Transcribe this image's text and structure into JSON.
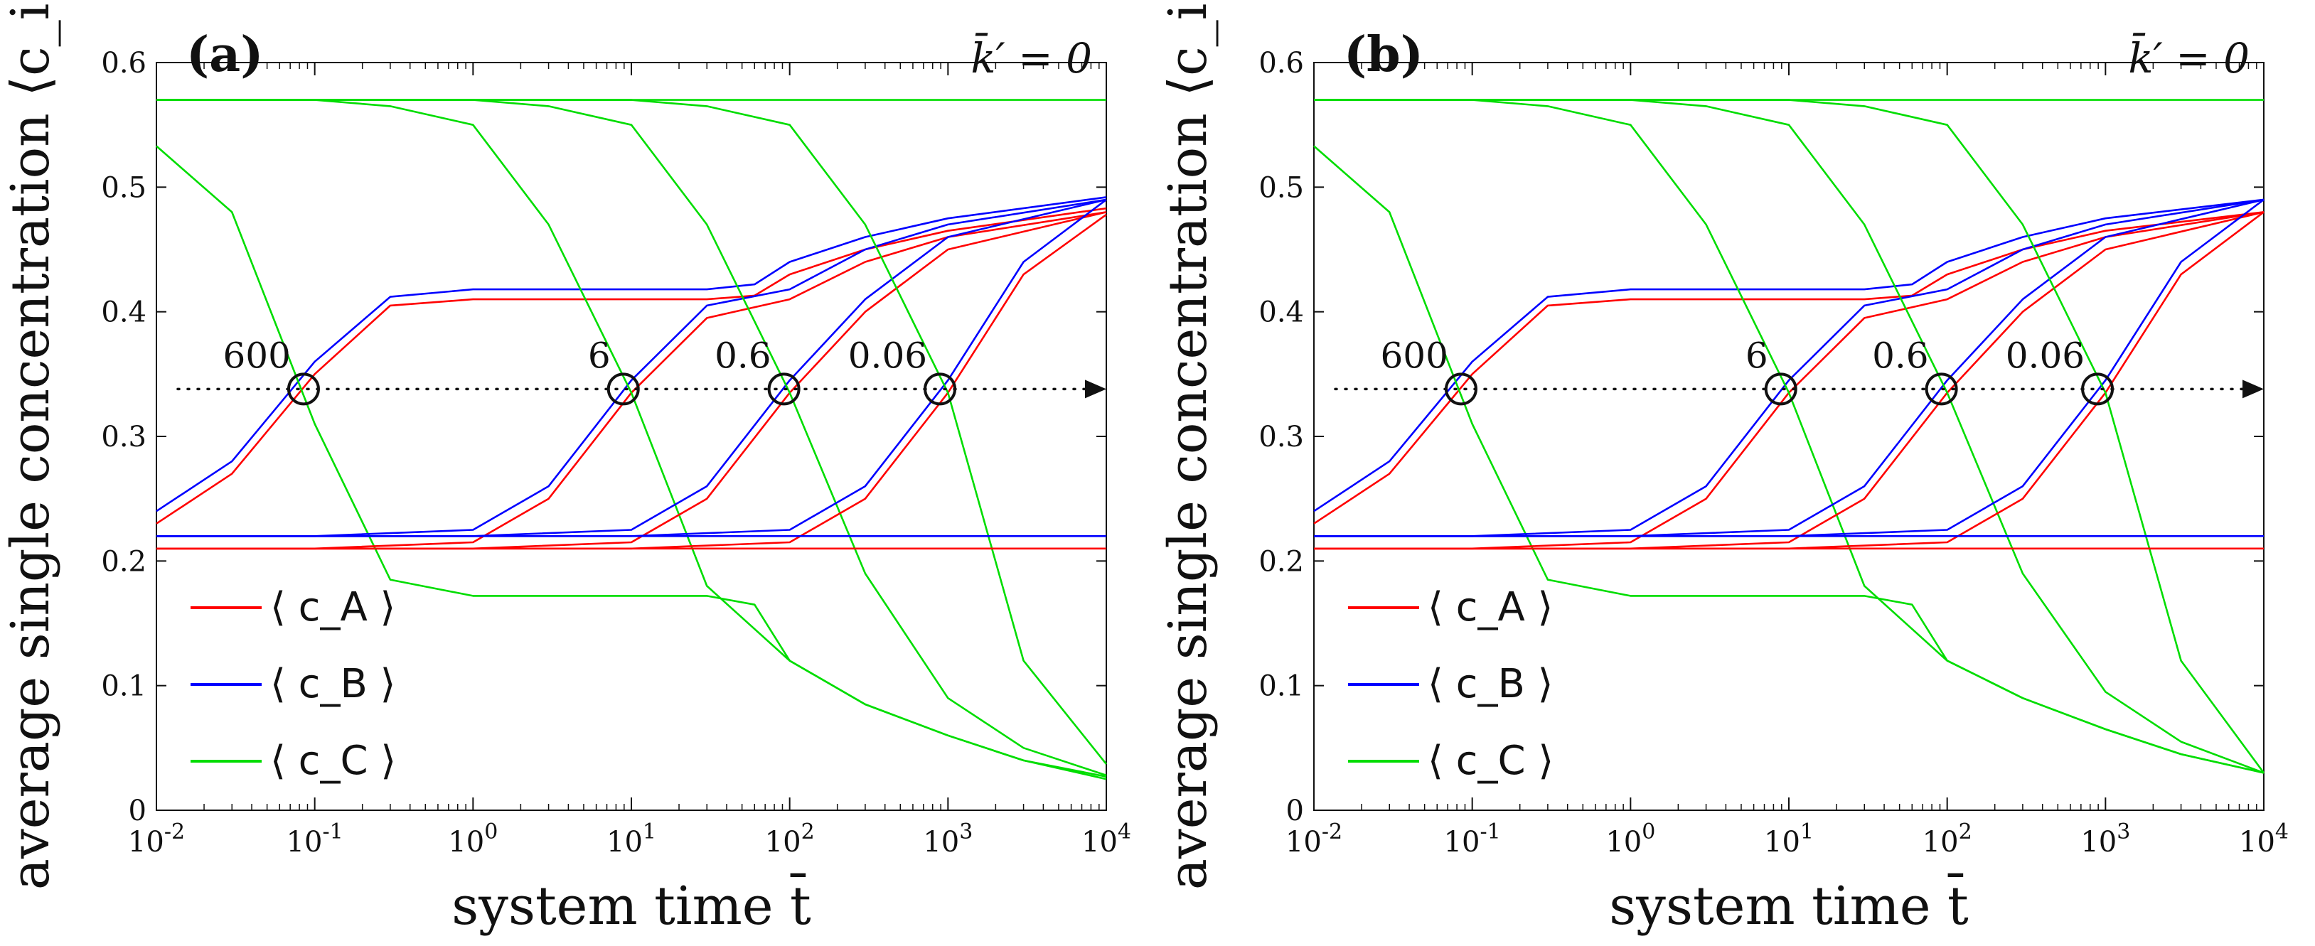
{
  "chart_data": [
    {
      "type": "line",
      "panel_label": "(a)",
      "corner_annotation": "k̄′ = 0",
      "xlabel": "system time t̄",
      "ylabel": "average single concentration ⟨c_i⟩",
      "xscale": "log",
      "xlim": [
        0.01,
        10000
      ],
      "ylim": [
        0,
        0.6
      ],
      "x_ticks": [
        "10^-2",
        "10^-1",
        "10^0",
        "10^1",
        "10^2",
        "10^3",
        "10^4"
      ],
      "y_ticks": [
        "0",
        "0.1",
        "0.2",
        "0.3",
        "0.4",
        "0.5",
        "0.6"
      ],
      "legend": [
        "⟨ c_A ⟩",
        "⟨ c_B ⟩",
        "⟨ c_C ⟩"
      ],
      "colors": {
        "A": "#ff0000",
        "B": "#0000ff",
        "C": "#00dd00"
      },
      "crossing_y": 0.338,
      "crossings": [
        {
          "label": "600",
          "t": 0.085
        },
        {
          "label": "6",
          "t": 8.9
        },
        {
          "label": "0.6",
          "t": 92
        },
        {
          "label": "0.06",
          "t": 890
        }
      ],
      "series": [
        {
          "name": "cA run 600",
          "color": "A",
          "x": [
            0.01,
            0.03,
            0.1,
            0.3,
            1,
            3,
            10,
            30,
            60,
            100,
            300,
            1000,
            10000
          ],
          "values": [
            0.23,
            0.27,
            0.35,
            0.405,
            0.41,
            0.41,
            0.41,
            0.41,
            0.413,
            0.43,
            0.45,
            0.465,
            0.483
          ]
        },
        {
          "name": "cB run 600",
          "color": "B",
          "x": [
            0.01,
            0.03,
            0.1,
            0.3,
            1,
            3,
            10,
            30,
            60,
            100,
            300,
            1000,
            10000
          ],
          "values": [
            0.24,
            0.28,
            0.36,
            0.412,
            0.418,
            0.418,
            0.418,
            0.418,
            0.422,
            0.44,
            0.46,
            0.475,
            0.492
          ]
        },
        {
          "name": "cC run 600",
          "color": "C",
          "x": [
            0.01,
            0.03,
            0.1,
            0.3,
            1,
            3,
            10,
            30,
            60,
            100,
            300,
            1000,
            3000,
            10000
          ],
          "values": [
            0.533,
            0.48,
            0.31,
            0.185,
            0.172,
            0.172,
            0.172,
            0.172,
            0.165,
            0.12,
            0.085,
            0.06,
            0.04,
            0.025
          ]
        },
        {
          "name": "cA run 6",
          "color": "A",
          "x": [
            0.01,
            0.1,
            1,
            3,
            10,
            30,
            100,
            300,
            1000,
            10000
          ],
          "values": [
            0.21,
            0.21,
            0.215,
            0.25,
            0.335,
            0.395,
            0.41,
            0.44,
            0.46,
            0.48
          ]
        },
        {
          "name": "cB run 6",
          "color": "B",
          "x": [
            0.01,
            0.1,
            1,
            3,
            10,
            30,
            100,
            300,
            1000,
            10000
          ],
          "values": [
            0.22,
            0.22,
            0.225,
            0.26,
            0.345,
            0.405,
            0.418,
            0.45,
            0.47,
            0.49
          ]
        },
        {
          "name": "cC run 6",
          "color": "C",
          "x": [
            0.01,
            0.1,
            0.3,
            1,
            3,
            10,
            30,
            100,
            300,
            1000,
            3000,
            10000
          ],
          "values": [
            0.57,
            0.57,
            0.565,
            0.55,
            0.47,
            0.335,
            0.18,
            0.12,
            0.085,
            0.06,
            0.04,
            0.027
          ]
        },
        {
          "name": "cA run 0.6",
          "color": "A",
          "x": [
            0.01,
            1,
            10,
            30,
            100,
            300,
            1000,
            10000
          ],
          "values": [
            0.21,
            0.21,
            0.215,
            0.25,
            0.335,
            0.4,
            0.45,
            0.48
          ]
        },
        {
          "name": "cB run 0.6",
          "color": "B",
          "x": [
            0.01,
            1,
            10,
            30,
            100,
            300,
            1000,
            10000
          ],
          "values": [
            0.22,
            0.22,
            0.225,
            0.26,
            0.345,
            0.41,
            0.46,
            0.49
          ]
        },
        {
          "name": "cC run 0.6",
          "color": "C",
          "x": [
            0.01,
            1,
            3,
            10,
            30,
            100,
            300,
            1000,
            3000,
            10000
          ],
          "values": [
            0.57,
            0.57,
            0.565,
            0.55,
            0.47,
            0.335,
            0.19,
            0.09,
            0.05,
            0.028
          ]
        },
        {
          "name": "cA run 0.06",
          "color": "A",
          "x": [
            0.01,
            10,
            100,
            300,
            1000,
            3000,
            10000
          ],
          "values": [
            0.21,
            0.21,
            0.215,
            0.25,
            0.335,
            0.43,
            0.478
          ]
        },
        {
          "name": "cB run 0.06",
          "color": "B",
          "x": [
            0.01,
            10,
            100,
            300,
            1000,
            3000,
            10000
          ],
          "values": [
            0.22,
            0.22,
            0.225,
            0.26,
            0.345,
            0.44,
            0.49
          ]
        },
        {
          "name": "cC run 0.06",
          "color": "C",
          "x": [
            0.01,
            10,
            30,
            100,
            300,
            1000,
            3000,
            10000
          ],
          "values": [
            0.57,
            0.57,
            0.565,
            0.55,
            0.47,
            0.335,
            0.12,
            0.037
          ]
        },
        {
          "name": "cA flat",
          "color": "A",
          "x": [
            0.01,
            10000
          ],
          "values": [
            0.21,
            0.21
          ]
        },
        {
          "name": "cB flat",
          "color": "B",
          "x": [
            0.01,
            10000
          ],
          "values": [
            0.22,
            0.22
          ]
        },
        {
          "name": "cC flat",
          "color": "C",
          "x": [
            0.01,
            10000
          ],
          "values": [
            0.57,
            0.57
          ]
        }
      ]
    },
    {
      "type": "line",
      "panel_label": "(b)",
      "corner_annotation": "k̄′ = 0",
      "xlabel": "system time t̄",
      "ylabel": "average single concentration ⟨c_i⟩",
      "xscale": "log",
      "xlim": [
        0.01,
        10000
      ],
      "ylim": [
        0,
        0.6
      ],
      "x_ticks": [
        "10^-2",
        "10^-1",
        "10^0",
        "10^1",
        "10^2",
        "10^3",
        "10^4"
      ],
      "y_ticks": [
        "0",
        "0.1",
        "0.2",
        "0.3",
        "0.4",
        "0.5",
        "0.6"
      ],
      "legend": [
        "⟨ c_A ⟩",
        "⟨ c_B ⟩",
        "⟨ c_C ⟩"
      ],
      "colors": {
        "A": "#ff0000",
        "B": "#0000ff",
        "C": "#00dd00"
      },
      "crossing_y": 0.338,
      "crossings": [
        {
          "label": "600",
          "t": 0.085
        },
        {
          "label": "6",
          "t": 8.9
        },
        {
          "label": "0.6",
          "t": 92
        },
        {
          "label": "0.06",
          "t": 890
        }
      ],
      "series": [
        {
          "name": "cA run 600",
          "color": "A",
          "x": [
            0.01,
            0.03,
            0.1,
            0.3,
            1,
            3,
            10,
            30,
            60,
            100,
            300,
            1000,
            10000
          ],
          "values": [
            0.23,
            0.27,
            0.35,
            0.405,
            0.41,
            0.41,
            0.41,
            0.41,
            0.413,
            0.43,
            0.45,
            0.465,
            0.48
          ]
        },
        {
          "name": "cB run 600",
          "color": "B",
          "x": [
            0.01,
            0.03,
            0.1,
            0.3,
            1,
            3,
            10,
            30,
            60,
            100,
            300,
            1000,
            10000
          ],
          "values": [
            0.24,
            0.28,
            0.36,
            0.412,
            0.418,
            0.418,
            0.418,
            0.418,
            0.422,
            0.44,
            0.46,
            0.475,
            0.49
          ]
        },
        {
          "name": "cC run 600",
          "color": "C",
          "x": [
            0.01,
            0.03,
            0.1,
            0.3,
            1,
            3,
            10,
            30,
            60,
            100,
            300,
            1000,
            3000,
            10000
          ],
          "values": [
            0.533,
            0.48,
            0.31,
            0.185,
            0.172,
            0.172,
            0.172,
            0.172,
            0.165,
            0.12,
            0.09,
            0.065,
            0.045,
            0.03
          ]
        },
        {
          "name": "cA run 6",
          "color": "A",
          "x": [
            0.01,
            0.1,
            1,
            3,
            10,
            30,
            100,
            300,
            1000,
            10000
          ],
          "values": [
            0.21,
            0.21,
            0.215,
            0.25,
            0.335,
            0.395,
            0.41,
            0.44,
            0.46,
            0.48
          ]
        },
        {
          "name": "cB run 6",
          "color": "B",
          "x": [
            0.01,
            0.1,
            1,
            3,
            10,
            30,
            100,
            300,
            1000,
            10000
          ],
          "values": [
            0.22,
            0.22,
            0.225,
            0.26,
            0.345,
            0.405,
            0.418,
            0.45,
            0.47,
            0.49
          ]
        },
        {
          "name": "cC run 6",
          "color": "C",
          "x": [
            0.01,
            0.1,
            0.3,
            1,
            3,
            10,
            30,
            100,
            300,
            1000,
            3000,
            10000
          ],
          "values": [
            0.57,
            0.57,
            0.565,
            0.55,
            0.47,
            0.335,
            0.18,
            0.12,
            0.09,
            0.065,
            0.045,
            0.03
          ]
        },
        {
          "name": "cA run 0.6",
          "color": "A",
          "x": [
            0.01,
            1,
            10,
            30,
            100,
            300,
            1000,
            10000
          ],
          "values": [
            0.21,
            0.21,
            0.215,
            0.25,
            0.335,
            0.4,
            0.45,
            0.48
          ]
        },
        {
          "name": "cB run 0.6",
          "color": "B",
          "x": [
            0.01,
            1,
            10,
            30,
            100,
            300,
            1000,
            10000
          ],
          "values": [
            0.22,
            0.22,
            0.225,
            0.26,
            0.345,
            0.41,
            0.46,
            0.49
          ]
        },
        {
          "name": "cC run 0.6",
          "color": "C",
          "x": [
            0.01,
            1,
            3,
            10,
            30,
            100,
            300,
            1000,
            3000,
            10000
          ],
          "values": [
            0.57,
            0.57,
            0.565,
            0.55,
            0.47,
            0.335,
            0.19,
            0.095,
            0.055,
            0.03
          ]
        },
        {
          "name": "cA run 0.06",
          "color": "A",
          "x": [
            0.01,
            10,
            100,
            300,
            1000,
            3000,
            10000
          ],
          "values": [
            0.21,
            0.21,
            0.215,
            0.25,
            0.335,
            0.43,
            0.48
          ]
        },
        {
          "name": "cB run 0.06",
          "color": "B",
          "x": [
            0.01,
            10,
            100,
            300,
            1000,
            3000,
            10000
          ],
          "values": [
            0.22,
            0.22,
            0.225,
            0.26,
            0.345,
            0.44,
            0.49
          ]
        },
        {
          "name": "cC run 0.06",
          "color": "C",
          "x": [
            0.01,
            10,
            30,
            100,
            300,
            1000,
            3000,
            10000
          ],
          "values": [
            0.57,
            0.57,
            0.565,
            0.55,
            0.47,
            0.335,
            0.12,
            0.03
          ]
        },
        {
          "name": "cA flat",
          "color": "A",
          "x": [
            0.01,
            10000
          ],
          "values": [
            0.21,
            0.21
          ]
        },
        {
          "name": "cB flat",
          "color": "B",
          "x": [
            0.01,
            10000
          ],
          "values": [
            0.22,
            0.22
          ]
        },
        {
          "name": "cC flat",
          "color": "C",
          "x": [
            0.01,
            10000
          ],
          "values": [
            0.57,
            0.57
          ]
        }
      ]
    }
  ]
}
